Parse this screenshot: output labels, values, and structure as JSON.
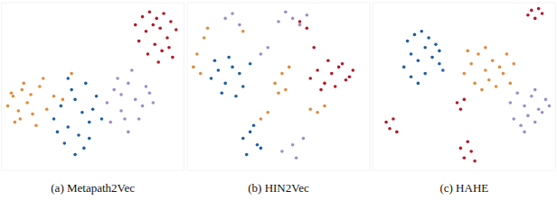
{
  "chart_data": [
    {
      "type": "scatter",
      "title": "(a) Metapath2Vec",
      "xlim": [
        0,
        100
      ],
      "ylim": [
        0,
        100
      ],
      "tick_labels": false,
      "series": [
        {
          "color": "#b2182b",
          "x": [
            74,
            78,
            82,
            86,
            90,
            94,
            97,
            80,
            84,
            88,
            92,
            76,
            85,
            89,
            93,
            81,
            87,
            95
          ],
          "y": [
            88,
            93,
            96,
            92,
            95,
            90,
            85,
            84,
            88,
            86,
            80,
            78,
            76,
            72,
            74,
            70,
            65,
            68
          ]
        },
        {
          "color": "#e08a3c",
          "x": [
            2,
            5,
            8,
            10,
            13,
            16,
            6,
            11,
            15,
            20,
            24,
            28,
            4,
            9,
            18,
            22,
            33,
            38
          ],
          "y": [
            38,
            44,
            35,
            48,
            40,
            33,
            28,
            52,
            45,
            50,
            36,
            44,
            46,
            30,
            26,
            55,
            42,
            58
          ]
        },
        {
          "color": "#1f5fa0",
          "x": [
            28,
            32,
            36,
            40,
            44,
            48,
            52,
            34,
            38,
            42,
            46,
            50,
            30,
            40,
            45,
            55,
            36,
            48
          ],
          "y": [
            30,
            38,
            25,
            42,
            34,
            28,
            44,
            15,
            48,
            20,
            52,
            36,
            22,
            8,
            12,
            30,
            55,
            18
          ]
        },
        {
          "color": "#9f8cc8",
          "x": [
            58,
            62,
            66,
            70,
            74,
            78,
            82,
            60,
            64,
            68,
            72,
            76,
            84,
            70,
            66,
            80
          ],
          "y": [
            40,
            48,
            35,
            52,
            42,
            38,
            46,
            28,
            55,
            30,
            60,
            30,
            40,
            22,
            45,
            50
          ]
        }
      ]
    },
    {
      "type": "scatter",
      "title": "(b) HIN2Vec",
      "xlim": [
        0,
        100
      ],
      "ylim": [
        0,
        100
      ],
      "tick_labels": false,
      "series": [
        {
          "color": "#1f5fa0",
          "x": [
            12,
            16,
            20,
            24,
            28,
            14,
            22,
            30,
            34,
            18,
            26,
            30,
            34,
            38,
            32,
            36,
            40
          ],
          "y": [
            55,
            60,
            52,
            62,
            58,
            66,
            68,
            50,
            64,
            46,
            44,
            18,
            22,
            14,
            8,
            26,
            12
          ]
        },
        {
          "color": "#b2182b",
          "x": [
            68,
            72,
            76,
            80,
            84,
            88,
            92,
            74,
            82,
            90,
            78,
            86,
            70,
            62,
            66
          ],
          "y": [
            55,
            60,
            52,
            58,
            62,
            54,
            60,
            48,
            50,
            56,
            66,
            64,
            74,
            90,
            86
          ]
        },
        {
          "color": "#9f8cc8",
          "x": [
            20,
            24,
            28,
            50,
            54,
            58,
            62,
            66,
            52,
            58,
            60,
            64,
            40,
            44
          ],
          "y": [
            92,
            95,
            88,
            90,
            96,
            92,
            88,
            94,
            10,
            14,
            6,
            18,
            70,
            74
          ]
        },
        {
          "color": "#e08a3c",
          "x": [
            2,
            4,
            6,
            8,
            10,
            48,
            52,
            56,
            50,
            54,
            68,
            72,
            76,
            40,
            44,
            30
          ],
          "y": [
            62,
            70,
            58,
            80,
            86,
            52,
            58,
            62,
            46,
            48,
            36,
            34,
            38,
            30,
            34,
            84
          ]
        }
      ]
    },
    {
      "type": "scatter",
      "title": "(c) HAHE",
      "xlim": [
        0,
        100
      ],
      "ylim": [
        0,
        100
      ],
      "tick_labels": false,
      "series": [
        {
          "color": "#1f5fa0",
          "x": [
            16,
            20,
            24,
            28,
            32,
            36,
            18,
            22,
            26,
            30,
            34,
            38,
            20,
            28,
            36,
            24
          ],
          "y": [
            62,
            70,
            66,
            74,
            68,
            72,
            78,
            82,
            84,
            80,
            76,
            60,
            56,
            58,
            64,
            52
          ]
        },
        {
          "color": "#e08a3c",
          "x": [
            50,
            54,
            58,
            62,
            66,
            70,
            74,
            78,
            56,
            60,
            64,
            68,
            72,
            52,
            76,
            62
          ],
          "y": [
            58,
            64,
            70,
            60,
            66,
            62,
            70,
            64,
            52,
            48,
            54,
            50,
            58,
            72,
            52,
            74
          ]
        },
        {
          "color": "#9f8cc8",
          "x": [
            76,
            80,
            84,
            88,
            92,
            96,
            78,
            82,
            86,
            90,
            94,
            98,
            84,
            90
          ],
          "y": [
            40,
            46,
            38,
            44,
            36,
            42,
            30,
            26,
            32,
            28,
            34,
            38,
            22,
            48
          ]
        },
        {
          "color": "#b2182b",
          "x": [
            86,
            88,
            90,
            92,
            94,
            6,
            8,
            10,
            12,
            48,
            50,
            52,
            54,
            56,
            46,
            48,
            50
          ],
          "y": [
            94,
            97,
            92,
            98,
            95,
            28,
            24,
            30,
            22,
            12,
            6,
            16,
            10,
            4,
            40,
            36,
            42
          ]
        }
      ]
    }
  ]
}
